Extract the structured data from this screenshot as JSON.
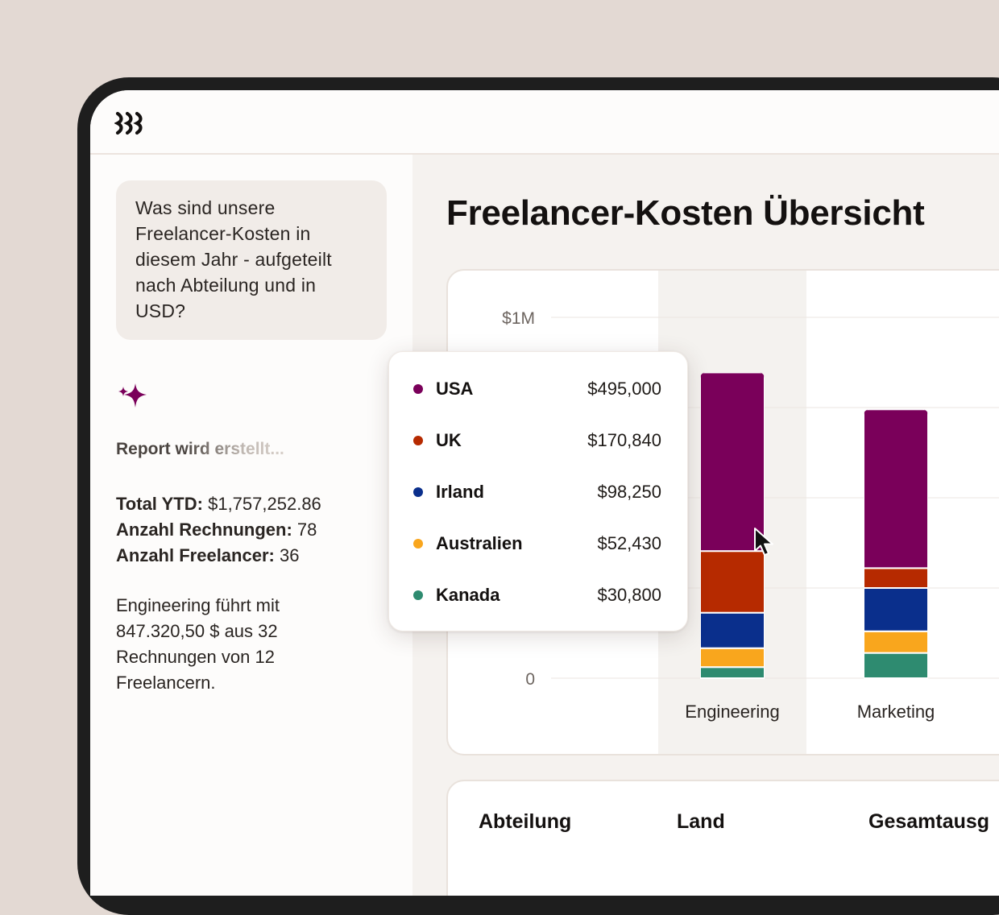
{
  "app": {
    "logo_icon": "stacked-waves-logo"
  },
  "chat": {
    "question": "Was sind unsere Freelancer-Kosten in diesem Jahr - aufgeteilt nach Abteilung und in USD?",
    "assistant_icon": "sparkle-icon",
    "status": "Report wird erstellt...",
    "stats": [
      {
        "label": "Total YTD:",
        "value": "$1,757,252.86"
      },
      {
        "label": "Anzahl Rechnungen:",
        "value": "78"
      },
      {
        "label": "Anzahl Freelancer:",
        "value": "36"
      }
    ],
    "summary": "Engineering führt mit 847.320,50 $ aus 32 Rechnungen von 12 Freelancern."
  },
  "report": {
    "title": "Freelancer-Kosten Übersicht",
    "table_headers": [
      "Abteilung",
      "Land",
      "Gesamtausg"
    ]
  },
  "colors": {
    "USA": "#7a005a",
    "UK": "#b62a00",
    "Irland": "#0a2f8c",
    "Australien": "#f9a61d",
    "Kanada": "#2e8b70",
    "highlight_band": "#f4f2ef"
  },
  "chart_data": {
    "type": "bar",
    "stacked": true,
    "categories": [
      "Engineering",
      "Marketing"
    ],
    "y_tick_labels": [
      "0",
      "$1M"
    ],
    "ylim": [
      0,
      1000000
    ],
    "grid": true,
    "highlighted_category": "Engineering",
    "series": [
      {
        "name": "USA",
        "values": [
          495000,
          440000
        ]
      },
      {
        "name": "UK",
        "values": [
          170840,
          55000
        ]
      },
      {
        "name": "Irland",
        "values": [
          98250,
          120000
        ]
      },
      {
        "name": "Australien",
        "values": [
          52430,
          60000
        ]
      },
      {
        "name": "Kanada",
        "values": [
          30800,
          70000
        ]
      }
    ]
  },
  "tooltip": {
    "category": "Engineering",
    "rows": [
      {
        "name": "USA",
        "value": "$495,000"
      },
      {
        "name": "UK",
        "value": "$170,840"
      },
      {
        "name": "Irland",
        "value": "$98,250"
      },
      {
        "name": "Australien",
        "value": "$52,430"
      },
      {
        "name": "Kanada",
        "value": "$30,800"
      }
    ]
  },
  "pointer_icon": "mouse-cursor-icon"
}
